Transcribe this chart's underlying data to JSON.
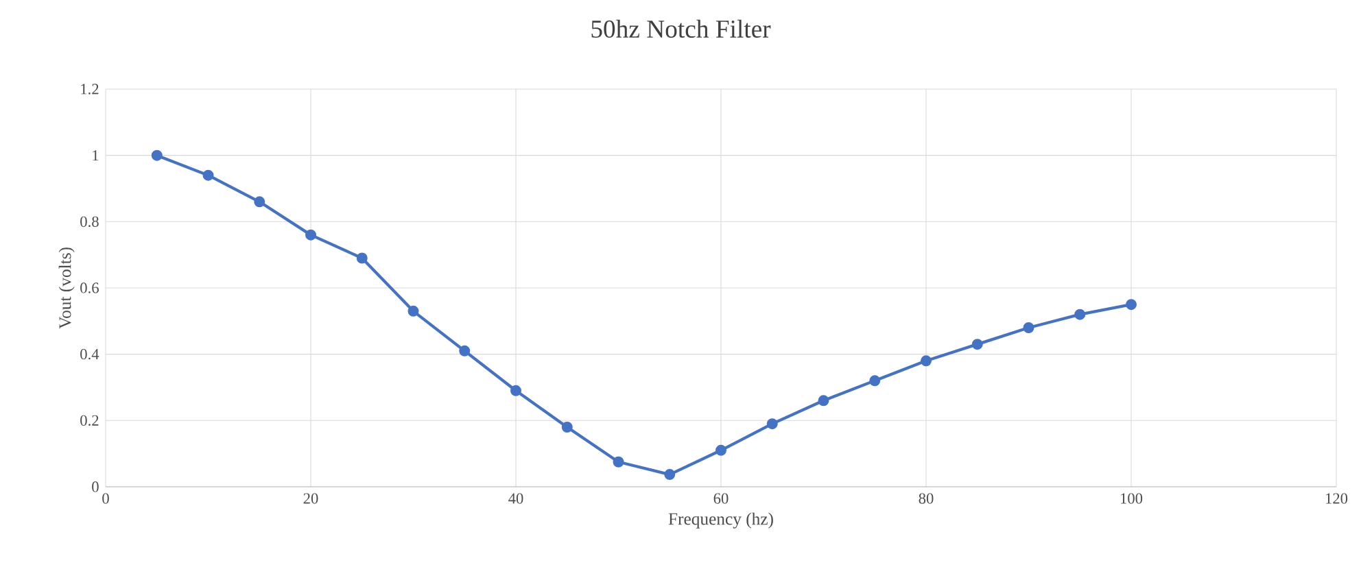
{
  "chart_data": {
    "type": "line",
    "title": "50hz Notch Filter",
    "xlabel": "Frequency (hz)",
    "ylabel": "Vout (volts)",
    "x": [
      5,
      10,
      15,
      20,
      25,
      30,
      35,
      40,
      45,
      50,
      55,
      60,
      65,
      70,
      75,
      80,
      85,
      90,
      95,
      100
    ],
    "series": [
      {
        "color": "#4472c4",
        "values": [
          1.0,
          0.94,
          0.86,
          0.76,
          0.69,
          0.53,
          0.41,
          0.29,
          0.18,
          0.075,
          0.037,
          0.11,
          0.19,
          0.26,
          0.32,
          0.38,
          0.43,
          0.48,
          0.52,
          0.55
        ]
      }
    ],
    "xlim": [
      0,
      120
    ],
    "ylim": [
      0,
      1.2
    ],
    "xticks": [
      0,
      20,
      40,
      60,
      80,
      100,
      120
    ],
    "yticks": [
      0,
      0.2,
      0.4,
      0.6,
      0.8,
      1,
      1.2
    ],
    "grid": true,
    "marker": "circle",
    "line_style": "solid",
    "legend": false
  }
}
